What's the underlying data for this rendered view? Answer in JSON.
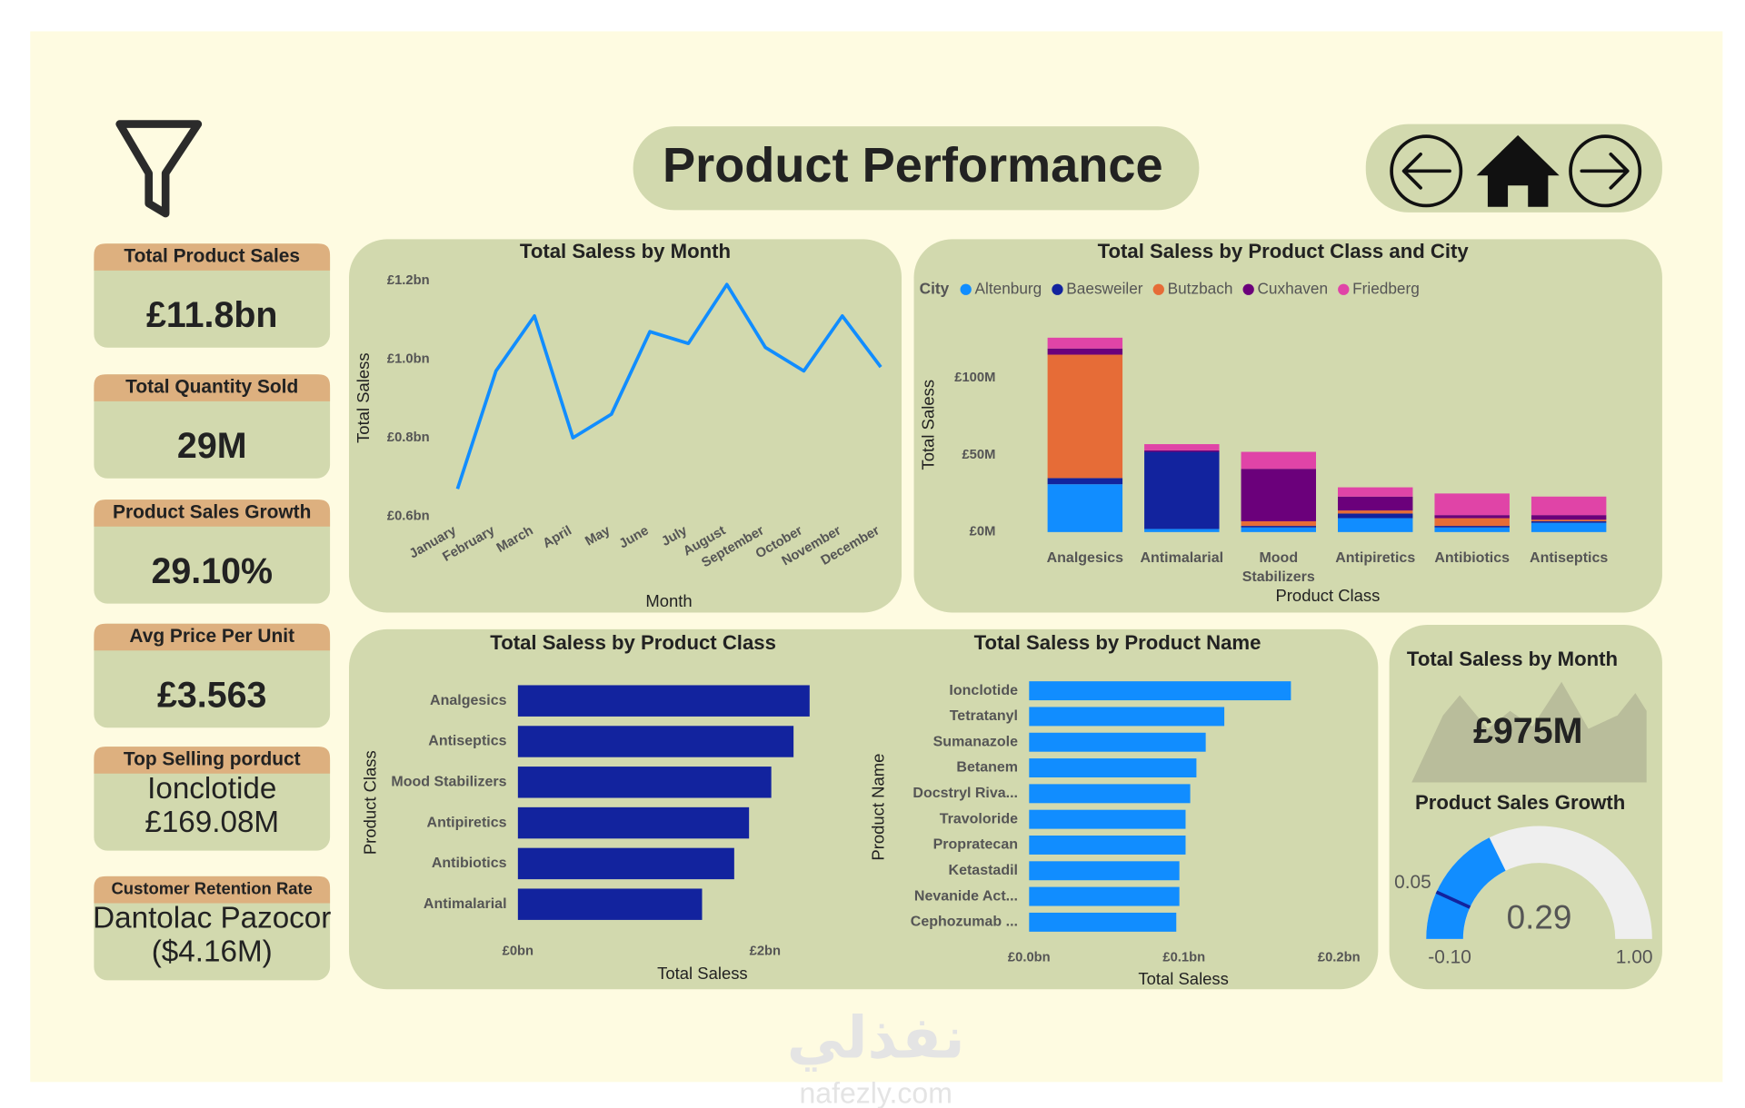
{
  "header": {
    "title": "Product Performance",
    "watermark": [
      "نفذلي",
      "nafezly.com"
    ]
  },
  "kpis": [
    {
      "title": "Total Product Sales",
      "value": [
        "£11.8bn"
      ]
    },
    {
      "title": "Total Quantity Sold",
      "value": [
        "29M"
      ]
    },
    {
      "title": "Product Sales Growth",
      "value": [
        "29.10%"
      ]
    },
    {
      "title": "Avg Price Per Unit",
      "value": [
        "£3.563"
      ]
    },
    {
      "title": "Top Selling porduct",
      "value": [
        "Ionclotide",
        "£169.08M"
      ]
    },
    {
      "title": "Customer Retention Rate",
      "value": [
        "Dantolac Pazocor",
        "($4.16M)"
      ]
    }
  ],
  "card": {
    "title": "Total Saless by Month",
    "value": "£975M"
  },
  "chart_data": [
    {
      "type": "line",
      "title": "Total Saless by Month",
      "x_label": "Month",
      "y_label": "Total Saless",
      "categories": [
        "January",
        "February",
        "March",
        "April",
        "May",
        "June",
        "July",
        "August",
        "September",
        "October",
        "November",
        "December"
      ],
      "values": [
        0.67,
        0.97,
        1.11,
        0.8,
        0.86,
        1.07,
        1.04,
        1.19,
        1.03,
        0.97,
        1.11,
        0.98
      ],
      "color": "#118dff",
      "ylim": [
        0.6,
        1.2
      ],
      "yticks": [
        {
          "value": 0.6,
          "label": "£0.6bn"
        },
        {
          "value": 0.8,
          "label": "£0.8bn"
        },
        {
          "value": 1.0,
          "label": "£1.0bn"
        },
        {
          "value": 1.2,
          "label": "£1.2bn"
        }
      ],
      "grid": false
    },
    {
      "type": "bar",
      "stacked": true,
      "orientation": "vertical",
      "title": "Total Saless by Product Class and City",
      "x_label": "Product Class",
      "y_label": "Total Saless",
      "legend_title": "City",
      "legend": "top-left",
      "categories": [
        "Analgesics",
        "Antimalarial",
        "Mood Stabilizers",
        "Antipiretics",
        "Antibiotics",
        "Antiseptics"
      ],
      "series": [
        {
          "name": "Altenburg",
          "color": "#118dff",
          "values": [
            31,
            2,
            3,
            9,
            3,
            6
          ]
        },
        {
          "name": "Baesweiler",
          "color": "#12239e",
          "values": [
            4,
            50,
            1,
            3,
            1,
            1
          ]
        },
        {
          "name": "Butzbach",
          "color": "#e66c37",
          "values": [
            80,
            0,
            3,
            2,
            5,
            1
          ]
        },
        {
          "name": "Cuxhaven",
          "color": "#6b007b",
          "values": [
            4,
            1,
            34,
            9,
            2,
            3
          ]
        },
        {
          "name": "Friedberg",
          "color": "#e044a7",
          "values": [
            7,
            4,
            11,
            6,
            14,
            12
          ]
        }
      ],
      "ylim": [
        0,
        130
      ],
      "yticks": [
        {
          "value": 0,
          "label": "£0M"
        },
        {
          "value": 50,
          "label": "£50M"
        },
        {
          "value": 100,
          "label": "£100M"
        }
      ],
      "grid": false
    },
    {
      "type": "bar",
      "orientation": "horizontal",
      "title": "Total Saless by Product Class",
      "x_label": "Total Saless",
      "y_label": "Product Class",
      "categories": [
        "Analgesics",
        "Antiseptics",
        "Mood Stabilizers",
        "Antipiretics",
        "Antibiotics",
        "Antimalarial"
      ],
      "values": [
        2.36,
        2.23,
        2.05,
        1.87,
        1.75,
        1.49
      ],
      "color": "#12239e",
      "xlim": [
        0,
        2.5
      ],
      "xticks": [
        {
          "value": 0,
          "label": "£0bn"
        },
        {
          "value": 2,
          "label": "£2bn"
        }
      ],
      "grid": false
    },
    {
      "type": "bar",
      "orientation": "horizontal",
      "title": "Total Saless by Product Name",
      "x_label": "Total Saless",
      "y_label": "Product Name",
      "categories": [
        "Ionclotide",
        "Tetratanyl",
        "Sumanazole",
        "Betanem",
        "Docstryl Riva...",
        "Travoloride",
        "Propratecan",
        "Ketastadil",
        "Nevanide Act...",
        "Cephozumab ..."
      ],
      "values": [
        0.169,
        0.126,
        0.114,
        0.108,
        0.104,
        0.101,
        0.101,
        0.097,
        0.097,
        0.095
      ],
      "color": "#118dff",
      "xlim": [
        0,
        0.2
      ],
      "xticks": [
        {
          "value": 0,
          "label": "£0.0bn"
        },
        {
          "value": 0.1,
          "label": "£0.1bn"
        },
        {
          "value": 0.2,
          "label": "£0.2bn"
        }
      ],
      "grid": false
    },
    {
      "type": "gauge",
      "title": "Product Sales Growth",
      "value": 0.29,
      "color": "#118dff",
      "min": {
        "value": -0.1,
        "label": "-0.10"
      },
      "max": {
        "value": 1,
        "label": "1.00"
      },
      "target": {
        "value": 0.05,
        "label": "0.05"
      }
    }
  ]
}
